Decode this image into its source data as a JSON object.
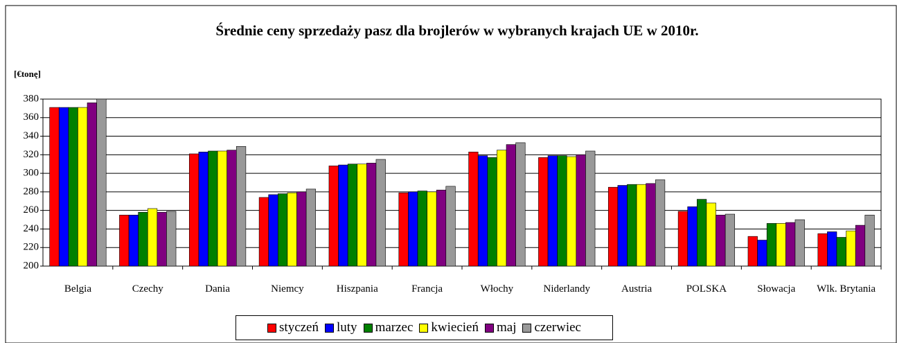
{
  "chart_data": {
    "type": "bar",
    "title": "Średnie ceny sprzedaży pasz dla brojlerów w wybranych krajach UE w 2010r.",
    "y_label": "[€tonę]",
    "categories": [
      "Belgia",
      "Czechy",
      "Dania",
      "Niemcy",
      "Hiszpania",
      "Francja",
      "Włochy",
      "Niderlandy",
      "Austria",
      "POLSKA",
      "Słowacja",
      "Wlk. Brytania"
    ],
    "series": [
      {
        "name": "styczeń",
        "color": "#ff0000",
        "values": [
          371,
          255,
          321,
          274,
          308,
          279,
          323,
          317,
          285,
          259,
          232,
          235
        ]
      },
      {
        "name": "luty",
        "color": "#0000ff",
        "values": [
          371,
          255,
          323,
          277,
          309,
          280,
          319,
          319,
          287,
          264,
          228,
          237
        ]
      },
      {
        "name": "marzec",
        "color": "#008000",
        "values": [
          371,
          258,
          324,
          278,
          310,
          281,
          317,
          319,
          288,
          272,
          246,
          231
        ]
      },
      {
        "name": "kwiecień",
        "color": "#ffff00",
        "values": [
          371,
          262,
          324,
          279,
          310,
          280,
          325,
          318,
          288,
          268,
          246,
          238
        ]
      },
      {
        "name": "maj",
        "color": "#800080",
        "values": [
          376,
          258,
          325,
          280,
          311,
          282,
          331,
          320,
          289,
          255,
          247,
          244
        ]
      },
      {
        "name": "czerwiec",
        "color": "#999999",
        "values": [
          380,
          259,
          329,
          283,
          315,
          286,
          333,
          324,
          293,
          256,
          250,
          255
        ]
      }
    ],
    "ylim": [
      200,
      380
    ],
    "yticks": [
      200,
      220,
      240,
      260,
      280,
      300,
      320,
      340,
      360,
      380
    ],
    "grid": true
  }
}
